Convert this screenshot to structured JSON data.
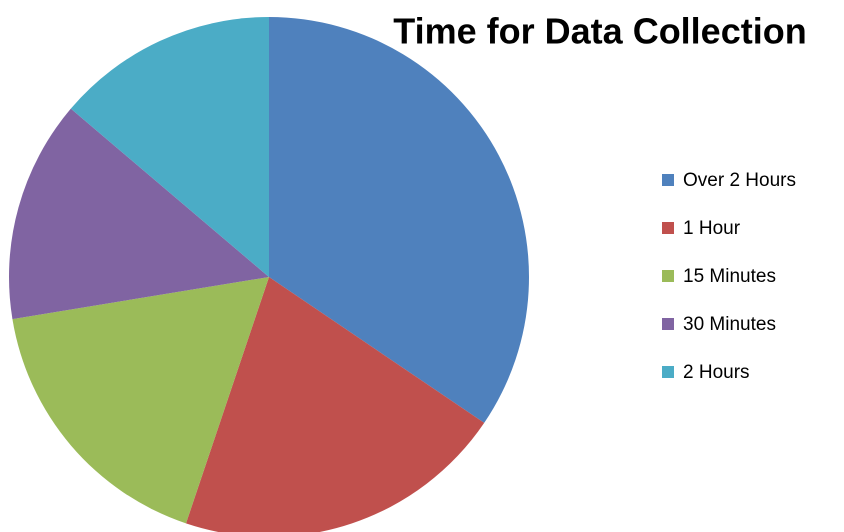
{
  "chart_data": {
    "type": "pie",
    "title": "Time for Data Collection",
    "categories": [
      "Over 2 Hours",
      "1 Hour",
      "15 Minutes",
      "30 Minutes",
      "2 Hours"
    ],
    "values": [
      10,
      6,
      5,
      4,
      4
    ],
    "colors": [
      "#4f81bd",
      "#c0504d",
      "#9bbb59",
      "#8064a2",
      "#4bacc6"
    ],
    "legend": "right"
  }
}
